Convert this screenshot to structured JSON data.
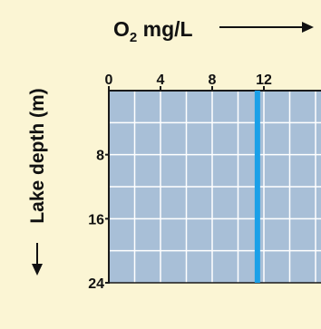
{
  "chart_data": {
    "type": "line",
    "x_title": {
      "base": "O",
      "subscript": "2",
      "unit": " mg/L"
    },
    "ylabel": "Lake depth (m)",
    "x_ticks": [
      0,
      4,
      8,
      12
    ],
    "y_ticks": [
      8,
      16,
      24
    ],
    "xlim": [
      0,
      16
    ],
    "ylim": [
      0,
      24
    ],
    "grid": true,
    "series": [
      {
        "points": [
          {
            "x": 11.5,
            "y": 0
          },
          {
            "x": 11.5,
            "y": 24
          }
        ]
      }
    ]
  },
  "colors": {
    "background": "#fbf5d4",
    "plot_fill": "#a8bfd7",
    "grid": "#ffffff",
    "axis": "#1a1a1a",
    "series": "#1aa0e8",
    "text": "#111111"
  }
}
